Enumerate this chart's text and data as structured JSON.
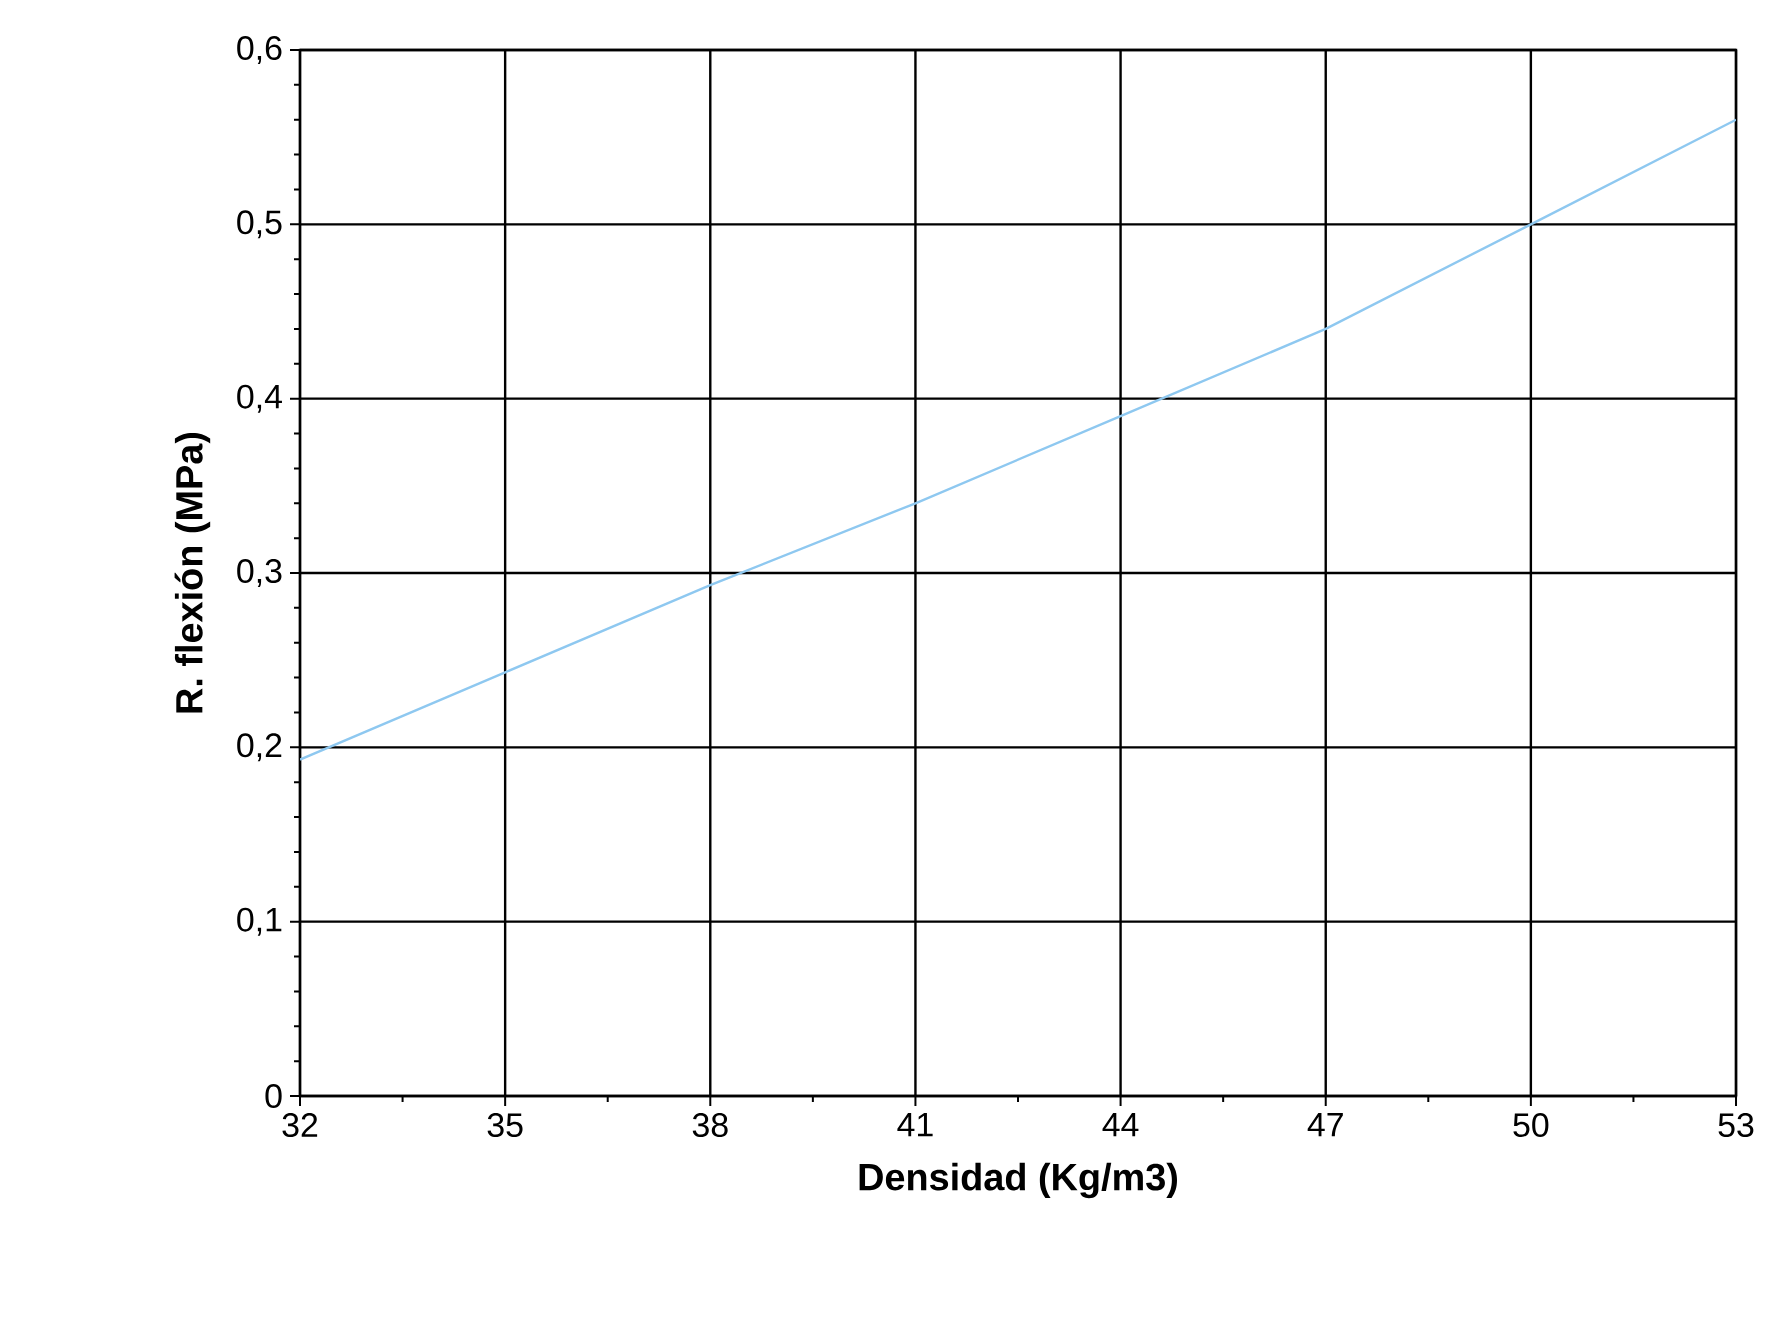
{
  "chart_data": {
    "type": "line",
    "xlabel": "Densidad (Kg/m3)",
    "ylabel": "R. flexión (MPa)",
    "x": [
      32,
      35,
      38,
      41,
      44,
      47,
      50,
      53
    ],
    "series": [
      {
        "color": "#8ec8f0",
        "values": [
          0.193,
          0.243,
          0.293,
          0.34,
          0.39,
          0.44,
          0.5,
          0.56
        ]
      }
    ],
    "xlim": [
      32,
      53
    ],
    "xticks": [
      32,
      35,
      38,
      41,
      44,
      47,
      50,
      53
    ],
    "ylim": [
      0,
      0.6
    ],
    "yticks": [
      0,
      {
        "value": 0.1,
        "label": "0,1"
      },
      {
        "value": 0.2,
        "label": "0,2"
      },
      {
        "value": 0.3,
        "label": "0,3"
      },
      {
        "value": 0.4,
        "label": "0,4"
      },
      {
        "value": 0.5,
        "label": "0,5"
      },
      {
        "value": 0.6,
        "label": "0,6"
      }
    ],
    "grid": true,
    "marker": "none",
    "line_style": "solid"
  }
}
